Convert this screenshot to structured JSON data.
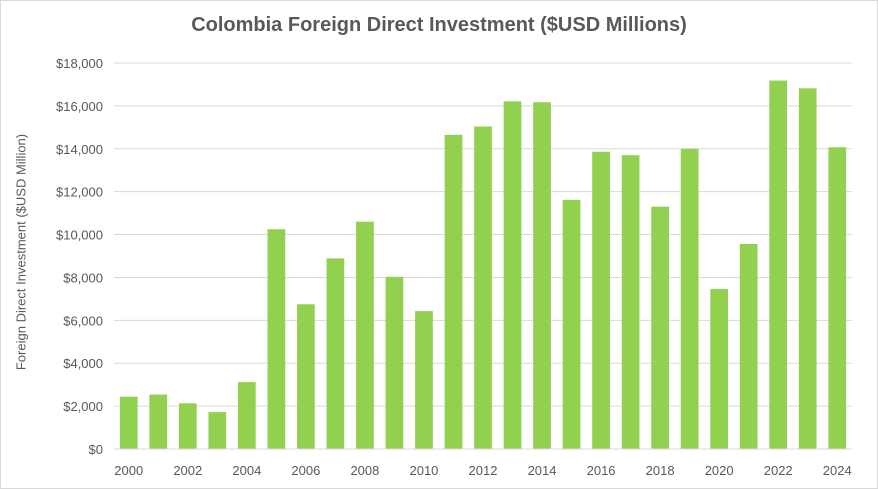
{
  "chart_data": {
    "type": "bar",
    "title": "Colombia Foreign Direct Investment ($USD Millions)",
    "xlabel": "",
    "ylabel": "Foreign Direct Investment ($USD Million)",
    "ylim": [
      0,
      18000
    ],
    "yticks": [
      "$0",
      "$2,000",
      "$4,000",
      "$6,000",
      "$8,000",
      "$10,000",
      "$12,000",
      "$14,000",
      "$16,000",
      "$18,000"
    ],
    "ytick_values": [
      0,
      2000,
      4000,
      6000,
      8000,
      10000,
      12000,
      14000,
      16000,
      18000
    ],
    "categories": [
      "2000",
      "2001",
      "2002",
      "2003",
      "2004",
      "2005",
      "2006",
      "2007",
      "2008",
      "2009",
      "2010",
      "2011",
      "2012",
      "2013",
      "2014",
      "2015",
      "2016",
      "2017",
      "2018",
      "2019",
      "2020",
      "2021",
      "2022",
      "2023",
      "2024"
    ],
    "xtick_labels": [
      "2000",
      "",
      "2002",
      "",
      "2004",
      "",
      "2006",
      "",
      "2008",
      "",
      "2010",
      "",
      "2012",
      "",
      "2014",
      "",
      "2016",
      "",
      "2018",
      "",
      "2020",
      "",
      "2022",
      "",
      "2024"
    ],
    "values": [
      2440,
      2540,
      2130,
      1720,
      3120,
      10250,
      6750,
      8890,
      10600,
      8030,
      6430,
      14650,
      15040,
      16210,
      16170,
      11620,
      13860,
      13700,
      11300,
      14000,
      7460,
      9560,
      17180,
      16820,
      14070
    ],
    "grid": true,
    "legend": "none",
    "bar_color": "#92d050",
    "grid_color": "#d9d9d9",
    "text_color": "#595959"
  }
}
